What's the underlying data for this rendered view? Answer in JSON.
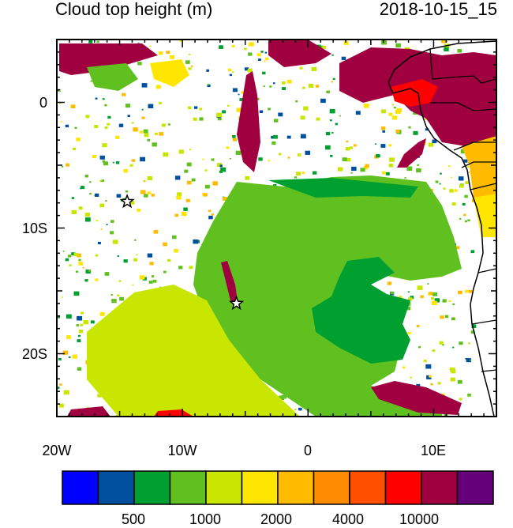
{
  "header": {
    "title": "Cloud top height (m)",
    "timestamp": "2018-10-15_15"
  },
  "map": {
    "lat_range": [
      -25,
      5
    ],
    "lon_range": [
      -20,
      15
    ],
    "y_ticks": [
      "0",
      "10S",
      "20S"
    ],
    "x_ticks": [
      "20W",
      "10W",
      "0",
      "10E"
    ],
    "station_markers": [
      {
        "lon": -14.4,
        "lat": -7.9
      },
      {
        "lon": -5.7,
        "lat": -16.0
      }
    ]
  },
  "colorbar": {
    "colors": [
      "#0000ff",
      "#0050a0",
      "#00a030",
      "#60c020",
      "#c8e600",
      "#ffe600",
      "#ffbb00",
      "#ff8c00",
      "#ff5000",
      "#ff0000",
      "#a00040",
      "#64007a"
    ],
    "labels": [
      "500",
      "1000",
      "2000",
      "4000",
      "10000"
    ]
  }
}
